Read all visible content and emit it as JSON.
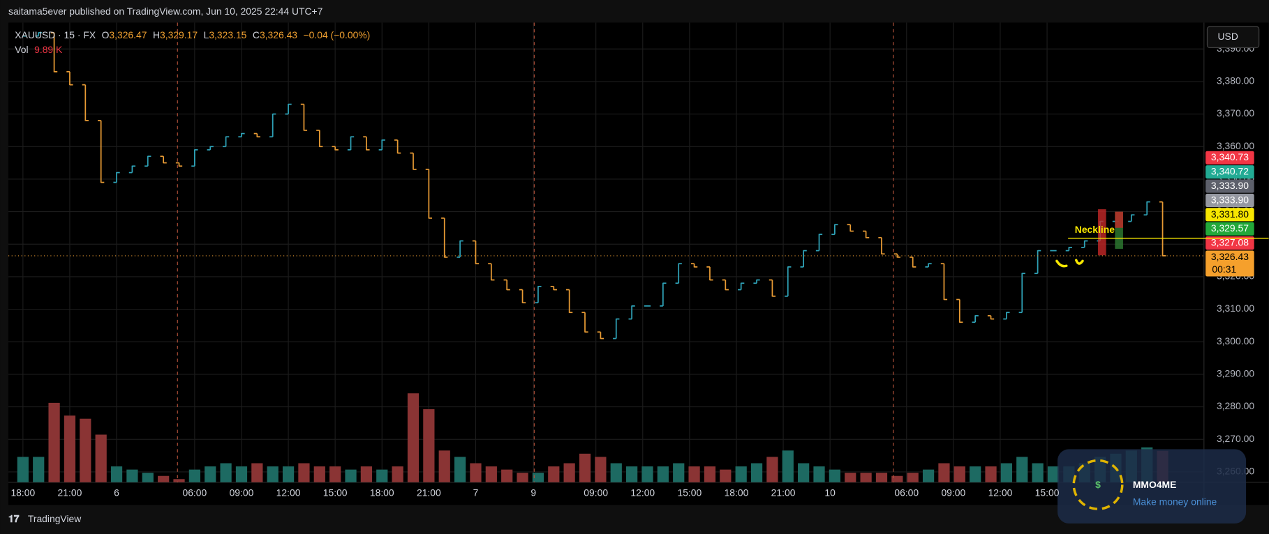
{
  "header": {
    "byline": "saitama5ever published on TradingView.com, Jun 10, 2025 22:44 UTC+7"
  },
  "chart_data": {
    "type": "ohlc",
    "symbol": "XAUUSD · 15 · FX",
    "legend": {
      "open_label": "O",
      "open": {
        "value": 3326.47,
        "label": "3,326.47"
      },
      "high_label": "H",
      "high": {
        "value": 3329.17,
        "label": "3,329.17"
      },
      "low_label": "L",
      "low": {
        "value": 3323.15,
        "label": "3,323.15"
      },
      "close_label": "C",
      "close": {
        "value": 3326.43,
        "label": "3,326.43"
      },
      "change": {
        "value": -0.04,
        "label": "−0.04 (−0.00%)"
      }
    },
    "volume_label": "Vol",
    "volume_value": {
      "value": 9.89,
      "label": "9.89 K"
    },
    "currency": "USD",
    "close": [
      3394,
      3395,
      3383,
      3379,
      3368,
      3349,
      3352,
      3354,
      3357,
      3355,
      3354,
      3359,
      3360,
      3363,
      3364,
      3363,
      3370,
      3373,
      3365,
      3360,
      3359,
      3363,
      3359,
      3362,
      3358,
      3353,
      3338,
      3326,
      3331,
      3324,
      3319,
      3316,
      3312,
      3317,
      3316,
      3309,
      3303,
      3301,
      3307,
      3311,
      3311,
      3318,
      3324,
      3323,
      3319,
      3316,
      3318,
      3319,
      3314,
      3323,
      3328,
      3333,
      3336,
      3334,
      3332,
      3327,
      3326,
      3323,
      3324,
      3313,
      3306,
      3308,
      3307,
      3309,
      3321,
      3328,
      3328,
      3329,
      3331,
      3337,
      3337,
      3339,
      3343,
      3326.43
    ],
    "volume": [
      8,
      8,
      25,
      21,
      20,
      15,
      5,
      4,
      3,
      2,
      1,
      4,
      5,
      6,
      5,
      6,
      5,
      5,
      6,
      5,
      5,
      4,
      5,
      4,
      5,
      28,
      23,
      10,
      8,
      6,
      5,
      4,
      3,
      3,
      5,
      6,
      9,
      8,
      6,
      5,
      5,
      5,
      6,
      5,
      5,
      4,
      5,
      6,
      8,
      10,
      6,
      5,
      4,
      3,
      3,
      3,
      2,
      3,
      4,
      6,
      5,
      5,
      5,
      6,
      8,
      6,
      5,
      5,
      6,
      8,
      9,
      10,
      11,
      9.89
    ],
    "up_color": "#2fa3b8",
    "down_color": "#e89b34",
    "volume_up_color": "#1d6a62",
    "volume_down_color": "#8a3434",
    "xlim": [
      -0.93,
      75.65
    ],
    "xticks": [
      {
        "value": 0,
        "label": "18:00"
      },
      {
        "value": 3,
        "label": "21:00"
      },
      {
        "value": 6,
        "label": "6"
      },
      {
        "value": 11,
        "label": "06:00"
      },
      {
        "value": 14,
        "label": "09:00"
      },
      {
        "value": 17,
        "label": "12:00"
      },
      {
        "value": 20,
        "label": "15:00"
      },
      {
        "value": 23,
        "label": "18:00"
      },
      {
        "value": 26,
        "label": "21:00"
      },
      {
        "value": 29,
        "label": "7"
      },
      {
        "value": 32.7,
        "label": "9"
      },
      {
        "value": 36.7,
        "label": "09:00"
      },
      {
        "value": 39.7,
        "label": "12:00"
      },
      {
        "value": 42.7,
        "label": "15:00"
      },
      {
        "value": 45.7,
        "label": "18:00"
      },
      {
        "value": 48.7,
        "label": "21:00"
      },
      {
        "value": 51.7,
        "label": "10"
      },
      {
        "value": 56.6,
        "label": "06:00"
      },
      {
        "value": 59.6,
        "label": "09:00"
      },
      {
        "value": 62.6,
        "label": "12:00"
      },
      {
        "value": 65.6,
        "label": "15:00"
      }
    ],
    "ylim": [
      3256.8,
      3398.1
    ],
    "yticks": [
      {
        "value": 3260,
        "label": "3,260.00"
      },
      {
        "value": 3270,
        "label": "3,270.00"
      },
      {
        "value": 3280,
        "label": "3,280.00"
      },
      {
        "value": 3290,
        "label": "3,290.00"
      },
      {
        "value": 3300,
        "label": "3,300.00"
      },
      {
        "value": 3310,
        "label": "3,310.00"
      },
      {
        "value": 3320,
        "label": "3,320.00"
      },
      {
        "value": 3330,
        "label": "3,330.00"
      },
      {
        "value": 3340,
        "label": "3,340.00"
      },
      {
        "value": 3350,
        "label": "3,350.00"
      },
      {
        "value": 3360,
        "label": "3,360.00"
      },
      {
        "value": 3370,
        "label": "3,370.00"
      },
      {
        "value": 3380,
        "label": "3,380.00"
      },
      {
        "value": 3390,
        "label": "3,390.00"
      }
    ],
    "volume_lim": [
      0,
      60
    ],
    "grid": true,
    "annotation": {
      "text": "Neckline",
      "value": 3331.8,
      "color": "#f7e600"
    },
    "price_labels": [
      {
        "value": 3340.73,
        "label": "3,340.73",
        "color": "#f23645",
        "text_color": "#ffffff"
      },
      {
        "value": 3340.72,
        "label": "3,340.72",
        "color": "#22ab94",
        "text_color": "#ffffff"
      },
      {
        "value": 3333.9,
        "label": "3,333.90",
        "color": "#5d606b",
        "text_color": "#ffffff"
      },
      {
        "value": 3333.9,
        "label": "3,333.90",
        "color": "#9598a1",
        "text_color": "#ffffff"
      },
      {
        "value": 3331.8,
        "label": "3,331.80",
        "color": "#f7e600",
        "text_color": "#000000"
      },
      {
        "value": 3329.57,
        "label": "3,329.57",
        "color": "#22a83a",
        "text_color": "#ffffff"
      },
      {
        "value": 3327.08,
        "label": "3,327.08",
        "color": "#f23645",
        "text_color": "#ffffff"
      },
      {
        "value": 3326.43,
        "label": "3,326.43",
        "color": "#f5a02c",
        "text_color": "#000000",
        "countdown": "00:31"
      }
    ]
  },
  "footer": {
    "brand": "TradingView"
  },
  "watermark": {
    "title": "MMO4ME",
    "subtitle": "Make money online"
  }
}
